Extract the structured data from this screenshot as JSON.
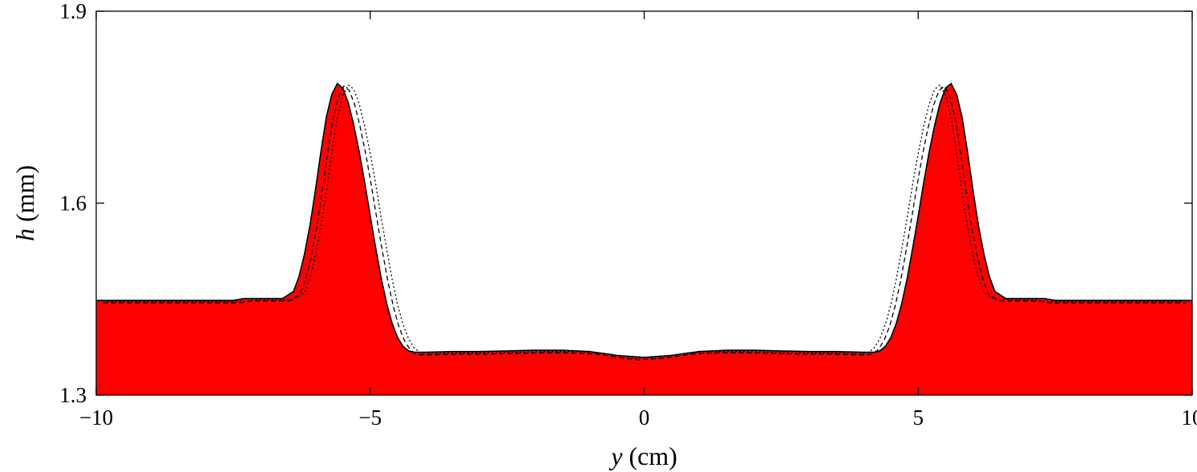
{
  "chart_data": {
    "type": "area",
    "x": [
      -10,
      -7.5,
      -7.3,
      -7.0,
      -6.6,
      -6.4,
      -6.3,
      -6.2,
      -6.1,
      -6.0,
      -5.9,
      -5.8,
      -5.7,
      -5.6,
      -5.5,
      -5.4,
      -5.3,
      -5.2,
      -5.1,
      -5.0,
      -4.9,
      -4.8,
      -4.7,
      -4.6,
      -4.5,
      -4.4,
      -4.3,
      -4.2,
      -4.1,
      -4.0,
      -3.5,
      -3.0,
      -2.5,
      -2.0,
      -1.5,
      -1.0,
      -0.5,
      0,
      0.5,
      1.0,
      1.5,
      2.0,
      2.5,
      3.0,
      3.5,
      4.0,
      4.1,
      4.2,
      4.3,
      4.4,
      4.5,
      4.6,
      4.7,
      4.8,
      4.9,
      5.0,
      5.1,
      5.2,
      5.3,
      5.4,
      5.5,
      5.6,
      5.7,
      5.8,
      5.9,
      6.0,
      6.1,
      6.2,
      6.3,
      6.4,
      6.6,
      7.0,
      7.3,
      7.5,
      10
    ],
    "series": [
      {
        "values": [
          1.448,
          1.448,
          1.451,
          1.451,
          1.451,
          1.462,
          1.485,
          1.52,
          1.565,
          1.62,
          1.68,
          1.735,
          1.77,
          1.787,
          1.78,
          1.757,
          1.722,
          1.68,
          1.632,
          1.58,
          1.53,
          1.483,
          1.443,
          1.412,
          1.39,
          1.376,
          1.369,
          1.367,
          1.367,
          1.367,
          1.368,
          1.368,
          1.369,
          1.37,
          1.37,
          1.368,
          1.362,
          1.359,
          1.362,
          1.368,
          1.37,
          1.37,
          1.369,
          1.368,
          1.368,
          1.367,
          1.367,
          1.367,
          1.369,
          1.376,
          1.39,
          1.412,
          1.443,
          1.483,
          1.53,
          1.58,
          1.632,
          1.68,
          1.722,
          1.757,
          1.78,
          1.787,
          1.77,
          1.735,
          1.68,
          1.62,
          1.565,
          1.52,
          1.485,
          1.462,
          1.451,
          1.451,
          1.451,
          1.448,
          1.448
        ]
      }
    ],
    "title": "",
    "xlabel_italic": "y",
    "xlabel_rest": " (cm)",
    "ylabel_italic": "h",
    "ylabel_rest": " (mm)",
    "xlim": [
      -10,
      10
    ],
    "ylim": [
      1.3,
      1.9
    ],
    "xticks": [
      -10,
      -5,
      0,
      5,
      10
    ],
    "xtick_labels": [
      "−10",
      "−5",
      "0",
      "5",
      "10"
    ],
    "yticks": [
      1.3,
      1.6,
      1.9
    ],
    "ytick_labels": [
      "1.3",
      "1.6",
      "1.9"
    ],
    "grid": false,
    "colors": {
      "fill": "#ff0000",
      "line": "#000000",
      "axis": "#000000"
    }
  }
}
